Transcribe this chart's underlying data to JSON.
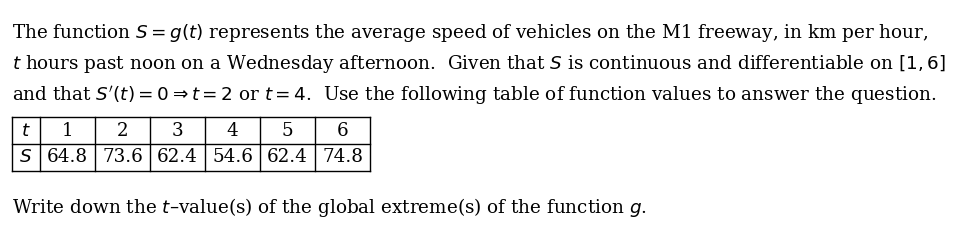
{
  "line1": "The function $S = g(t)$ represents the average speed of vehicles on the M1 freeway, in km per hour,",
  "line2": "$t$ hours past noon on a Wednesday afternoon.  Given that $S$ is continuous and differentiable on $[1, 6]$",
  "line3": "and that $S'(t) = 0 \\Rightarrow t = 2$ or $t = 4$.  Use the following table of function values to answer the question.",
  "t_values": [
    "1",
    "2",
    "3",
    "4",
    "5",
    "6"
  ],
  "s_values": [
    "64.8",
    "73.6",
    "62.4",
    "54.6",
    "62.4",
    "74.8"
  ],
  "question_pre": "Write down the $t$",
  "question_post": "-value(s) of the global extreme(s) of the function $g$.",
  "background_color": "#ffffff",
  "text_color": "#000000",
  "font_size": 13.2
}
